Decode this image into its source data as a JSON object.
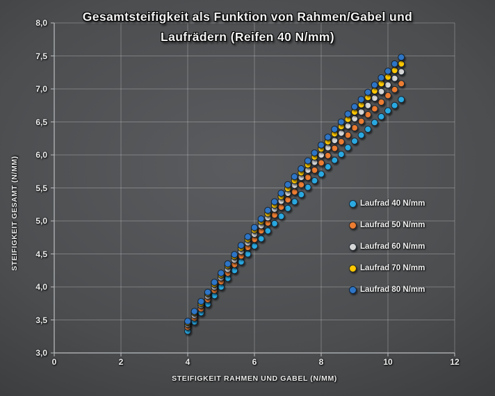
{
  "title": {
    "line1": "Gesamtsteifigkeit als Funktion von Rahmen/Gabel und",
    "line2": "Laufrädern (Reifen 40 N/mm)"
  },
  "colors": {
    "background_center": "#5a5c5f",
    "background_edge": "#2a2b2c",
    "gridline": "rgba(255,255,255,0.26)",
    "axis_line": "#bcbfc1",
    "text": "#f2f2f2",
    "marker_outline": "#16202c"
  },
  "chart_data": {
    "type": "scatter",
    "title": "Gesamtsteifigkeit als Funktion von Rahmen/Gabel und Laufrädern (Reifen 40 N/mm)",
    "xlabel": "STEIFIGKEIT RAHMEN UND GABEL (N/MM)",
    "ylabel": "STEIFIGKEIT GESAMT (N/MM)",
    "xlim": [
      0,
      12
    ],
    "ylim": [
      3,
      8
    ],
    "grid": true,
    "legend_position": "inside-right",
    "x_ticks": {
      "values": [
        0,
        2,
        4,
        6,
        8,
        10,
        12
      ],
      "labels": [
        "0",
        "2",
        "4",
        "6",
        "8",
        "10",
        "12"
      ]
    },
    "y_ticks": {
      "values": [
        3,
        3.5,
        4,
        4.5,
        5,
        5.5,
        6,
        6.5,
        7,
        7.5,
        8
      ],
      "labels": [
        "3,0",
        "3,5",
        "4,0",
        "4,5",
        "5,0",
        "5,5",
        "6,0",
        "6,5",
        "7,0",
        "7,5",
        "8,0"
      ]
    },
    "x": [
      4.0,
      4.2,
      4.4,
      4.6,
      4.8,
      5.0,
      5.2,
      5.4,
      5.6,
      5.8,
      6.0,
      6.2,
      6.4,
      6.6,
      6.8,
      7.0,
      7.2,
      7.4,
      7.6,
      7.8,
      8.0,
      8.2,
      8.4,
      8.6,
      8.8,
      9.0,
      9.2,
      9.4,
      9.6,
      9.8,
      10.0,
      10.2,
      10.4
    ],
    "series": [
      {
        "name": "Laufrad 40 N/mm",
        "color": "#2CA9E1",
        "values": [
          3.33,
          3.47,
          3.61,
          3.74,
          3.87,
          4.0,
          4.13,
          4.25,
          4.38,
          4.5,
          4.62,
          4.73,
          4.85,
          4.96,
          5.07,
          5.19,
          5.29,
          5.4,
          5.51,
          5.61,
          5.71,
          5.82,
          5.92,
          6.01,
          6.11,
          6.21,
          6.3,
          6.39,
          6.49,
          6.58,
          6.67,
          6.75,
          6.84
        ]
      },
      {
        "name": "Laufrad 50 N/mm",
        "color": "#ED7D31",
        "values": [
          3.39,
          3.53,
          3.67,
          3.81,
          3.95,
          4.08,
          4.21,
          4.34,
          4.47,
          4.6,
          4.72,
          4.85,
          4.97,
          5.09,
          5.21,
          5.32,
          5.44,
          5.55,
          5.66,
          5.77,
          5.88,
          5.99,
          6.1,
          6.2,
          6.3,
          6.41,
          6.51,
          6.61,
          6.7,
          6.8,
          6.9,
          6.99,
          7.08
        ]
      },
      {
        "name": "Laufrad 60 N/mm",
        "color": "#D6D6D6",
        "values": [
          3.43,
          3.57,
          3.72,
          3.86,
          4.0,
          4.14,
          4.27,
          4.41,
          4.54,
          4.67,
          4.8,
          4.93,
          5.05,
          5.18,
          5.3,
          5.42,
          5.54,
          5.66,
          5.77,
          5.89,
          6.0,
          6.11,
          6.22,
          6.33,
          6.44,
          6.55,
          6.65,
          6.75,
          6.86,
          6.96,
          7.06,
          7.16,
          7.26
        ]
      },
      {
        "name": "Laufrad 70 N/mm",
        "color": "#FFC803",
        "values": [
          3.46,
          3.61,
          3.75,
          3.9,
          4.04,
          4.18,
          4.32,
          4.46,
          4.59,
          4.72,
          4.86,
          4.99,
          5.11,
          5.24,
          5.37,
          5.49,
          5.61,
          5.73,
          5.85,
          5.97,
          6.09,
          6.2,
          6.32,
          6.43,
          6.54,
          6.65,
          6.76,
          6.87,
          6.97,
          7.08,
          7.18,
          7.28,
          7.38
        ]
      },
      {
        "name": "Laufrad 80 N/mm",
        "color": "#2E75C6",
        "values": [
          3.48,
          3.63,
          3.78,
          3.92,
          4.07,
          4.21,
          4.35,
          4.49,
          4.63,
          4.76,
          4.9,
          5.03,
          5.16,
          5.29,
          5.42,
          5.55,
          5.67,
          5.79,
          5.91,
          6.03,
          6.15,
          6.27,
          6.39,
          6.5,
          6.62,
          6.73,
          6.84,
          6.95,
          7.06,
          7.17,
          7.27,
          7.38,
          7.48
        ]
      }
    ]
  }
}
